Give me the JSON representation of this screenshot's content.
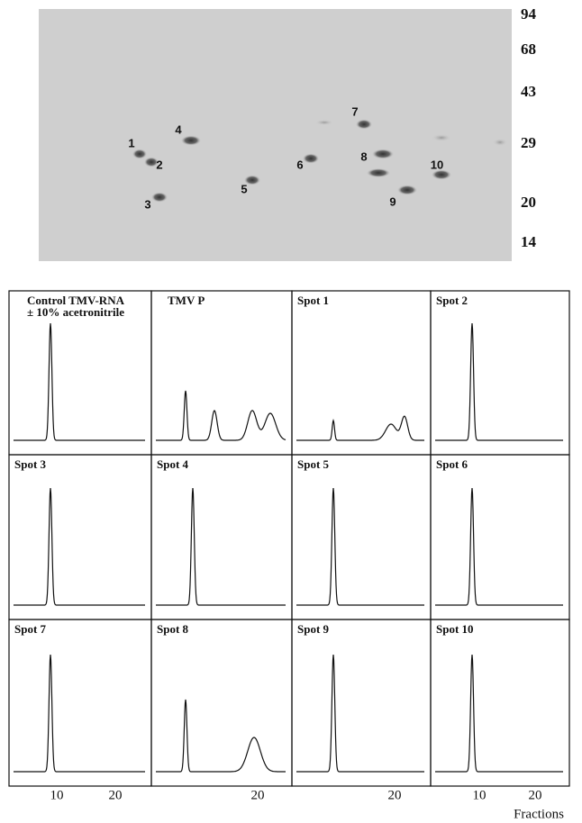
{
  "gel": {
    "markers": [
      "94",
      "68",
      "43",
      "29",
      "20",
      "14"
    ],
    "spots": [
      "1",
      "2",
      "3",
      "4",
      "5",
      "6",
      "7",
      "8",
      "9",
      "10"
    ]
  },
  "panels": [
    {
      "title": [
        "Control TMV-RNA",
        "± 10% acetronitrile"
      ]
    },
    {
      "title": [
        "TMV    P"
      ]
    },
    {
      "title": [
        "Spot 1"
      ]
    },
    {
      "title": [
        "Spot 2"
      ]
    },
    {
      "title": [
        "Spot 3"
      ]
    },
    {
      "title": [
        "Spot 4"
      ]
    },
    {
      "title": [
        "Spot 5"
      ]
    },
    {
      "title": [
        "Spot 6"
      ]
    },
    {
      "title": [
        "Spot 7"
      ]
    },
    {
      "title": [
        "Spot 8"
      ]
    },
    {
      "title": [
        "Spot 9"
      ]
    },
    {
      "title": [
        "Spot  10"
      ]
    }
  ],
  "x_axis": {
    "columns": [
      [
        "10",
        "20"
      ],
      [
        "20"
      ],
      [
        "20"
      ],
      [
        "10",
        "20"
      ]
    ],
    "label": "Fractions"
  }
}
